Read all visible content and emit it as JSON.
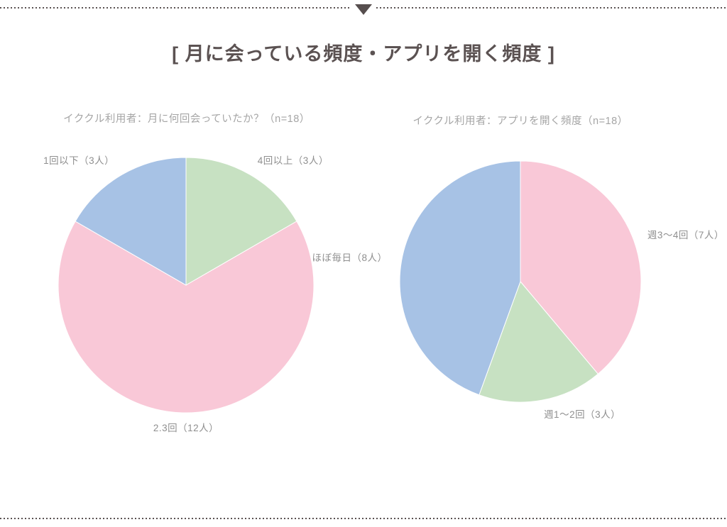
{
  "page": {
    "title": "[ 月に会っている頻度・アプリを開く頻度 ]"
  },
  "colors": {
    "title": "#5b5252",
    "divider_dots": "#5a5252",
    "triangle": "#564e4e",
    "subtitle": "#a5a5a5",
    "percent_label": "#8b8b8b",
    "outer_label": "#8f8f8f",
    "pie_blue": "#a7c2e5",
    "pie_green": "#c7e1c2",
    "pie_pink": "#f9c8d7"
  },
  "chart_data": [
    {
      "type": "pie",
      "title": "イククル利用者：月に何回会っていたか？（n=18）",
      "n": 18,
      "start_angle_deg": 0,
      "direction": "clockwise",
      "label_position": "outside",
      "legend": "none",
      "slices": [
        {
          "label": "4回以上（3人）",
          "category": "4回以上",
          "count": 3,
          "pct": 16.7,
          "pct_label": "16.7%",
          "color": "#c7e1c2"
        },
        {
          "label": "2.3回（12人）",
          "category": "2.3回",
          "count": 12,
          "pct": 66.7,
          "pct_label": "66.7%",
          "color": "#f9c8d7"
        },
        {
          "label": "1回以下（3人）",
          "category": "1回以下",
          "count": 3,
          "pct": 16.7,
          "pct_label": "16.7%",
          "color": "#a7c2e5"
        }
      ]
    },
    {
      "type": "pie",
      "title": "イククル利用者：アプリを開く頻度（n=18）",
      "n": 18,
      "start_angle_deg": 0,
      "direction": "clockwise",
      "label_position": "outside",
      "legend": "none",
      "slices": [
        {
          "label": "週3〜4回（7人）",
          "category": "週3〜4回",
          "count": 7,
          "pct": 38.9,
          "pct_label": "38.9%",
          "color": "#f9c8d7"
        },
        {
          "label": "週1〜2回（3人）",
          "category": "週1〜2回",
          "count": 3,
          "pct": 16.7,
          "pct_label": "16.7%",
          "color": "#c7e1c2"
        },
        {
          "label": "ほぼ毎日（8人）",
          "category": "ほぼ毎日",
          "count": 8,
          "pct": 44.4,
          "pct_label": "44.4%",
          "color": "#a7c2e5"
        }
      ]
    }
  ]
}
